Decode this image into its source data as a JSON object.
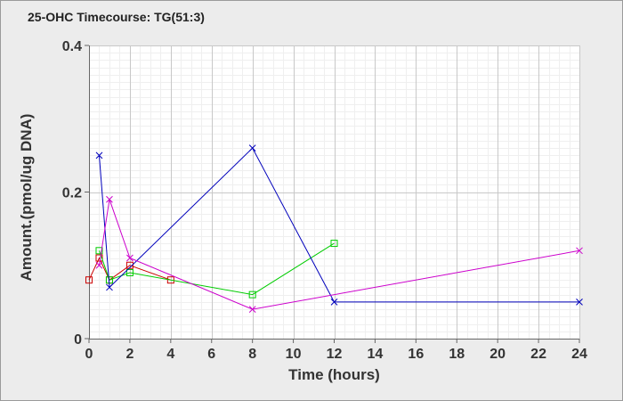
{
  "chart_data": {
    "type": "line",
    "title": "25-OHC Timecourse: TG(51:3)",
    "xlabel": "Time (hours)",
    "ylabel": "Amount.(pmol/ug DNA)",
    "xlim": [
      0,
      24
    ],
    "ylim": [
      0,
      0.4
    ],
    "x_ticks": [
      "0",
      "2",
      "4",
      "6",
      "8",
      "10",
      "12",
      "14",
      "16",
      "18",
      "20",
      "22",
      "24"
    ],
    "y_ticks": [
      "0",
      "0.2",
      "0.4"
    ],
    "grid": true,
    "legend": "none",
    "series": [
      {
        "color": "#cc0000",
        "marker": "square",
        "points": [
          [
            0,
            0.08
          ],
          [
            0.5,
            0.11
          ],
          [
            1,
            0.08
          ],
          [
            2,
            0.1
          ],
          [
            4,
            0.08
          ]
        ]
      },
      {
        "color": "#00cc00",
        "marker": "square",
        "points": [
          [
            0.5,
            0.12
          ],
          [
            1,
            0.08
          ],
          [
            2,
            0.09
          ],
          [
            8,
            0.06
          ],
          [
            12,
            0.13
          ]
        ]
      },
      {
        "color": "#0000bb",
        "marker": "x",
        "points": [
          [
            0.5,
            0.25
          ],
          [
            1,
            0.07
          ],
          [
            8,
            0.26
          ],
          [
            12,
            0.05
          ],
          [
            24,
            0.05
          ]
        ]
      },
      {
        "color": "#cc00cc",
        "marker": "x",
        "points": [
          [
            0.5,
            0.1
          ],
          [
            1,
            0.19
          ],
          [
            2,
            0.11
          ],
          [
            8,
            0.04
          ],
          [
            24,
            0.12
          ]
        ]
      }
    ]
  }
}
